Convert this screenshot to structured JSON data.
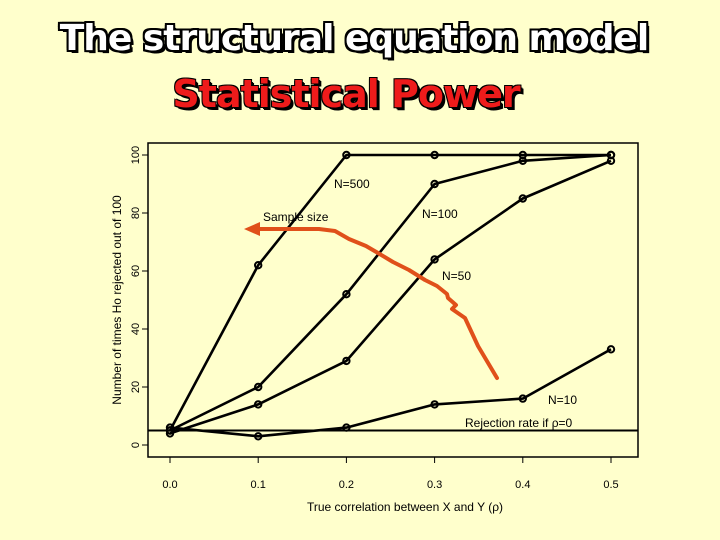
{
  "title": "The structural equation model",
  "subtitle": "Statistical Power",
  "colors": {
    "background": "#ffffcc",
    "line": "#000000",
    "arrow": "#e0501a",
    "sample_size_label": "#a0522d"
  },
  "chart_data": {
    "type": "line",
    "xlabel": "True correlation between X and Y (ρ)",
    "ylabel": "Number of times Ho rejected out of 100",
    "xlim": [
      0.0,
      0.5
    ],
    "ylim": [
      0,
      100
    ],
    "x": [
      0.0,
      0.1,
      0.2,
      0.3,
      0.4,
      0.5
    ],
    "x_ticks": [
      "0.0",
      "0.1",
      "0.2",
      "0.3",
      "0.4",
      "0.5"
    ],
    "y_ticks": [
      "0",
      "20",
      "40",
      "60",
      "80",
      "100"
    ],
    "series": [
      {
        "name": "N=500",
        "values": [
          5,
          62,
          100,
          100,
          100,
          100
        ]
      },
      {
        "name": "N=100",
        "values": [
          5,
          20,
          52,
          90,
          98,
          100
        ]
      },
      {
        "name": "N=50",
        "values": [
          4,
          14,
          29,
          64,
          85,
          98
        ]
      },
      {
        "name": "N=10",
        "values": [
          6,
          3,
          6,
          14,
          16,
          33
        ]
      }
    ],
    "reference_line": {
      "label": "Rejection rate if ρ=0",
      "value": 5
    },
    "annotation": "Sample size",
    "grid": false
  }
}
